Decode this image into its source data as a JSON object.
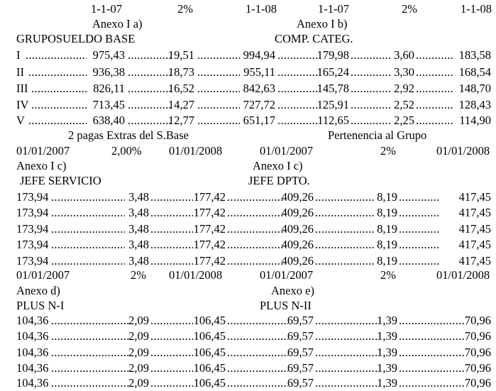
{
  "top": {
    "left": {
      "date1": "1-1-07",
      "pct": "2%",
      "date2": "1-1-08",
      "annex": "Anexo I a)",
      "title": "GRUPOSUELDO BASE"
    },
    "right": {
      "date1": "1-1-07",
      "pct": "2%",
      "date2": "1-1-08",
      "annex": "Anexo I b)",
      "title": "COMP. CATEG."
    },
    "rows": [
      {
        "grupo": "I",
        "base07": "975,43",
        "base_inc": "19,51",
        "base08": "994,94",
        "comp07": "179,98",
        "comp_inc": "3,60",
        "comp08": "183,58"
      },
      {
        "grupo": "II",
        "base07": "936,38",
        "base_inc": "18,73",
        "base08": "955,11",
        "comp07": "165,24",
        "comp_inc": "3,30",
        "comp08": "168,54"
      },
      {
        "grupo": "III",
        "base07": "826,11",
        "base_inc": "16,52",
        "base08": "842,63",
        "comp07": "145,78",
        "comp_inc": "2,92",
        "comp08": "148,70"
      },
      {
        "grupo": "IV",
        "base07": "713,45",
        "base_inc": "14,27",
        "base08": "727,72",
        "comp07": "125,91",
        "comp_inc": "2,52",
        "comp08": "128,43"
      },
      {
        "grupo": "V",
        "base07": "638,40",
        "base_inc": "12,77",
        "base08": "651,17",
        "comp07": "112,65",
        "comp_inc": "2,25",
        "comp08": "114,90"
      }
    ],
    "footer_left": "2 pagas Extras del S.Base",
    "footer_right": "Pertenencia al Grupo"
  },
  "mid": {
    "left": {
      "date1": "01/01/2007",
      "pct": "2,00%",
      "date2": "01/01/2008",
      "annex": "Anexo I c)",
      "title": "JEFE SERVICIO"
    },
    "right": {
      "date1": "01/01/2007",
      "pct": "2%",
      "date2": "01/01/2008",
      "annex": "Anexo I c)",
      "title": "JEFE DPTO."
    },
    "rows": [
      {
        "a07": "173,94",
        "a_inc": "3,48",
        "a08": "177,42",
        "b07": "409,26",
        "b_inc": "8,19",
        "b08": "417,45"
      },
      {
        "a07": "173,94",
        "a_inc": "3,48",
        "a08": "177,42",
        "b07": "409,26",
        "b_inc": "8,19",
        "b08": "417,45"
      },
      {
        "a07": "173,94",
        "a_inc": "3,48",
        "a08": "177,42",
        "b07": "409,26",
        "b_inc": "8,19",
        "b08": "417,45"
      },
      {
        "a07": "173,94",
        "a_inc": "3,48",
        "a08": "177,42",
        "b07": "409,26",
        "b_inc": "8,19",
        "b08": "417,45"
      },
      {
        "a07": "173,94",
        "a_inc": "3,48",
        "a08": "177,42",
        "b07": "409,26",
        "b_inc": "8,19",
        "b08": "417,45"
      }
    ]
  },
  "bottom": {
    "left": {
      "date1": "01/01/2007",
      "pct": "2%",
      "date2": "01/01/2008",
      "annex": "Anexo d)",
      "title": "PLUS N-I"
    },
    "right": {
      "date1": "01/01/2007",
      "pct": "2%",
      "date2": "01/01/2008",
      "annex": "Anexo e)",
      "title": "PLUS N-II"
    },
    "rows": [
      {
        "a07": "104,36",
        "a_inc": "2,09",
        "a08": "106,45",
        "b07": "69,57",
        "b_inc": "1,39",
        "b08": "70,96"
      },
      {
        "a07": "104,36",
        "a_inc": "2,09",
        "a08": "106,45",
        "b07": "69,57",
        "b_inc": "1,39",
        "b08": "70,96"
      },
      {
        "a07": "104,36",
        "a_inc": "2,09",
        "a08": "106,45",
        "b07": "69,57",
        "b_inc": "1,39",
        "b08": "70,96"
      },
      {
        "a07": "104,36",
        "a_inc": "2,09",
        "a08": "106,45",
        "b07": "69,57",
        "b_inc": "1,39",
        "b08": "70,96"
      },
      {
        "a07": "104,36",
        "a_inc": "2,09",
        "a08": "106,45",
        "b07": "69,57",
        "b_inc": "1,39",
        "b08": "70,96"
      }
    ]
  }
}
